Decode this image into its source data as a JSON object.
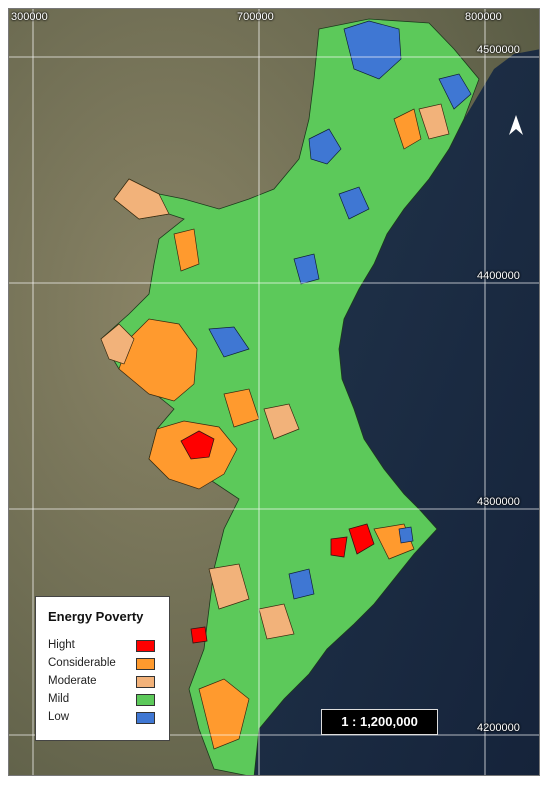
{
  "map": {
    "title": "",
    "grid_x_labels": [
      "300000",
      "700000",
      "800000"
    ],
    "grid_y_labels": [
      "4500000",
      "4400000",
      "4300000",
      "4200000"
    ],
    "scale_label": "1 : 1,200,000",
    "north_arrow": "north-arrow-icon",
    "colors": {
      "hight": "#ff0000",
      "considerable": "#ff9a2e",
      "moderate": "#f2b27a",
      "mild": "#5cc95a",
      "low": "#3f77d3",
      "sea": "#1c2c42",
      "land": "#6b6a52"
    }
  },
  "legend": {
    "title": "Energy Poverty",
    "items": [
      {
        "label": "Hight",
        "color": "#ff0000"
      },
      {
        "label": "Considerable",
        "color": "#ff9a2e"
      },
      {
        "label": "Moderate",
        "color": "#f2b27a"
      },
      {
        "label": "Mild",
        "color": "#5cc95a"
      },
      {
        "label": "Low",
        "color": "#3f77d3"
      }
    ]
  }
}
